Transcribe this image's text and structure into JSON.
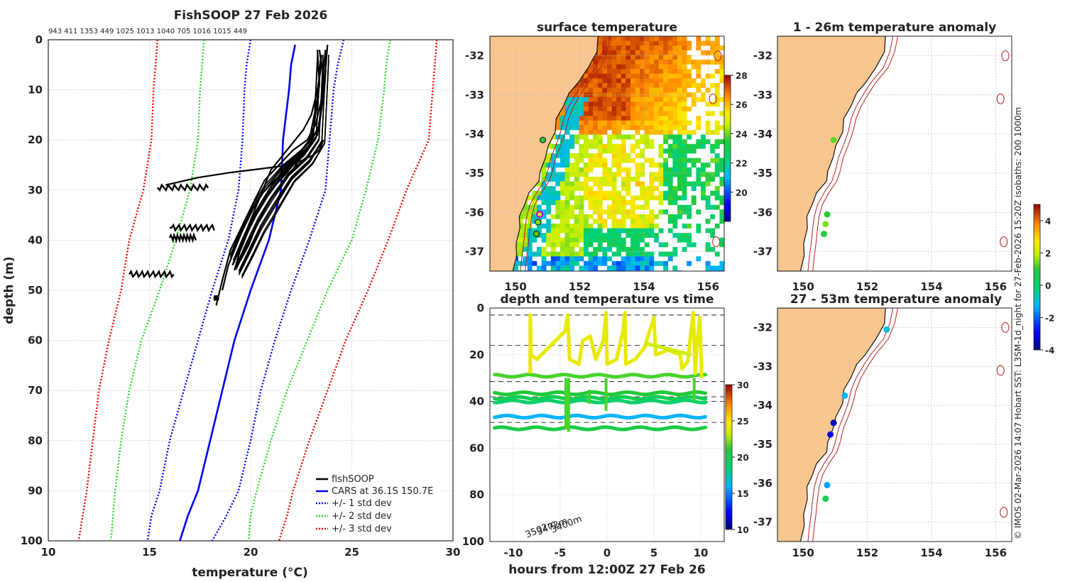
{
  "figure": {
    "credit": "© IMOS 02-Mar-2026 14:07 Hobart SST: L3SM-1d_night for 27-Feb-2026 15:20Z isobaths: 200  1000m"
  },
  "profile_panel": {
    "title": "FishSOOP 27 Feb 2026",
    "counts": "943 411 1353 449 1025 1013 1040 705 1016 1015 449",
    "xlabel": "temperature (°C)",
    "ylabel": "depth (m)",
    "legend": [
      "fishSOOP",
      "CARS at 36.1S 150.7E",
      "+/- 1 std dev",
      "+/- 2 std dev",
      "+/- 3 std dev"
    ]
  },
  "sst_map": {
    "title": "surface temperature"
  },
  "time_panel": {
    "title": "depth and temperature vs time",
    "xlabel": "hours from 12:00Z 27 Feb 26",
    "bathy_labels": [
      "3502m",
      "3472m",
      "3400m"
    ]
  },
  "anom_map_1": {
    "title": "1 - 26m temperature anomaly"
  },
  "anom_map_2": {
    "title": "27 - 53m temperature anomaly"
  },
  "chart_data": [
    {
      "type": "line",
      "name": "profiles",
      "title": "FishSOOP 27 Feb 2026",
      "xlabel": "temperature (°C)",
      "ylabel": "depth (m)",
      "xlim": [
        10,
        30
      ],
      "ylim": [
        100,
        0
      ],
      "xticks": [
        10,
        15,
        20,
        25,
        30
      ],
      "yticks": [
        0,
        10,
        20,
        30,
        40,
        50,
        60,
        70,
        80,
        90,
        100
      ],
      "grid": true,
      "legend_position": "bottom-right",
      "series": [
        {
          "name": "CARS at 36.1S 150.7E",
          "color": "#0000ee",
          "style": "solid",
          "temp": [
            22.2,
            22.0,
            21.9,
            21.6,
            21.5,
            20.9,
            20.0,
            19.2,
            18.6,
            18.0,
            17.4,
            16.9,
            16.5
          ],
          "depth": [
            1,
            5,
            10,
            20,
            30,
            40,
            50,
            60,
            70,
            80,
            90,
            95,
            100
          ]
        },
        {
          "name": "+/- 1 std dev",
          "color": "#0000ee",
          "style": "dotted",
          "temp": [
            20.0,
            19.8,
            19.7,
            19.6,
            19.4,
            18.9,
            18.1,
            17.4,
            16.7,
            16.0,
            15.5,
            15.1,
            14.9
          ],
          "depth": [
            0,
            5,
            10,
            20,
            30,
            40,
            50,
            60,
            70,
            80,
            90,
            95,
            100
          ]
        },
        {
          "name": "+/- 1 std dev (upper)",
          "color": "#0000ee",
          "style": "dotted",
          "temp": [
            24.6,
            24.3,
            24.1,
            23.9,
            23.7,
            22.9,
            22.0,
            21.2,
            20.5,
            20.0,
            19.4,
            18.8,
            18.1
          ],
          "depth": [
            0,
            5,
            10,
            20,
            30,
            40,
            50,
            60,
            70,
            80,
            90,
            95,
            100
          ]
        },
        {
          "name": "+/- 2 std dev",
          "color": "#22dd22",
          "style": "dotted",
          "temp": [
            17.7,
            17.6,
            17.5,
            17.4,
            17.0,
            16.3,
            15.5,
            14.6,
            14.0,
            13.6,
            13.3,
            13.2,
            13.1
          ],
          "depth": [
            0,
            5,
            10,
            20,
            30,
            40,
            50,
            60,
            70,
            80,
            90,
            95,
            100
          ]
        },
        {
          "name": "+/- 2 std dev (upper)",
          "color": "#22dd22",
          "style": "dotted",
          "temp": [
            26.9,
            26.7,
            26.6,
            26.3,
            25.7,
            25.0,
            23.8,
            22.8,
            21.8,
            21.0,
            20.3,
            20.0,
            19.9
          ],
          "depth": [
            0,
            5,
            10,
            20,
            30,
            40,
            50,
            60,
            70,
            80,
            90,
            95,
            100
          ]
        },
        {
          "name": "+/- 3 std dev",
          "color": "#ee0000",
          "style": "dotted",
          "temp": [
            15.4,
            15.3,
            15.2,
            15.1,
            14.7,
            14.0,
            13.6,
            13.0,
            12.5,
            12.2,
            11.9,
            11.7,
            11.5
          ],
          "depth": [
            0,
            5,
            10,
            20,
            30,
            40,
            50,
            60,
            70,
            80,
            90,
            95,
            100
          ]
        },
        {
          "name": "+/- 3 std dev (upper)",
          "color": "#ee0000",
          "style": "dotted",
          "temp": [
            29.2,
            29.1,
            29.0,
            28.8,
            27.7,
            26.8,
            25.8,
            24.7,
            23.8,
            22.9,
            22.1,
            21.8,
            21.4
          ],
          "depth": [
            0,
            5,
            10,
            20,
            30,
            40,
            50,
            60,
            70,
            80,
            90,
            95,
            100
          ]
        }
      ],
      "fishsoop_profiles": [
        {
          "temp": [
            23.4,
            23.5,
            23.3,
            23.0,
            22.6,
            22.2,
            21.6,
            21.0,
            20.6,
            20.2,
            19.8,
            19.4,
            19.1
          ],
          "depth": [
            2,
            5,
            10,
            15,
            18,
            20,
            23,
            26,
            30,
            34,
            38,
            42,
            45
          ]
        },
        {
          "temp": [
            23.7,
            23.6,
            23.5,
            23.2,
            22.8,
            22.1,
            21.4,
            20.7,
            20.2,
            19.6,
            19.0,
            18.6,
            18.3
          ],
          "depth": [
            2,
            6,
            12,
            17,
            20,
            22,
            25,
            28,
            32,
            37,
            42,
            48,
            53
          ]
        },
        {
          "temp": [
            23.5,
            23.4,
            23.3,
            23.1,
            22.9,
            22.4,
            21.9,
            21.3,
            20.8,
            20.3,
            19.9,
            19.5
          ],
          "depth": [
            3,
            7,
            12,
            18,
            21,
            24,
            27,
            30,
            33,
            37,
            41,
            44
          ]
        },
        {
          "temp": [
            23.6,
            23.6,
            23.5,
            23.3,
            22.7,
            22.0,
            21.2,
            20.5,
            19.9,
            19.4,
            18.9,
            18.6
          ],
          "depth": [
            4,
            8,
            13,
            19,
            22,
            25,
            28,
            31,
            35,
            40,
            45,
            50
          ]
        },
        {
          "temp": [
            23.8,
            23.7,
            23.6,
            23.4,
            22.9,
            22.3,
            21.7,
            21.0,
            20.4,
            19.9,
            19.5
          ],
          "depth": [
            1,
            6,
            11,
            17,
            21,
            24,
            27,
            30,
            34,
            38,
            42
          ]
        },
        {
          "temp": [
            23.3,
            23.4,
            23.2,
            22.9,
            22.4,
            21.6,
            20.9,
            20.3,
            19.7,
            19.2
          ],
          "depth": [
            2,
            9,
            14,
            20,
            23,
            26,
            30,
            34,
            39,
            46
          ]
        },
        {
          "temp": [
            23.6,
            23.4,
            23.1,
            22.6,
            21.9,
            21.0,
            20.0,
            19.0,
            17.4,
            15.8
          ],
          "depth": [
            20,
            22,
            23,
            24,
            25,
            25.5,
            26,
            26.5,
            27.5,
            29
          ]
        }
      ],
      "fishsoop_static": [
        {
          "temp_range": [
            15.4,
            17.9
          ],
          "depth": 29.5
        },
        {
          "temp_range": [
            16.0,
            18.2
          ],
          "depth": 37.5
        },
        {
          "temp_range": [
            16.0,
            17.3
          ],
          "depth": 39.5
        },
        {
          "temp_range": [
            14.0,
            16.2
          ],
          "depth": 46.8
        },
        {
          "temp_range": [
            18.2,
            18.4
          ],
          "depth": 51.5
        }
      ]
    },
    {
      "type": "scatter",
      "name": "depth_vs_time",
      "title": "depth and temperature vs time",
      "xlabel": "hours from 12:00Z 27 Feb 26",
      "ylabel": "",
      "xlim": [
        -12.5,
        12.5
      ],
      "ylim": [
        100,
        0
      ],
      "xticks": [
        -10,
        -5,
        0,
        5,
        10
      ],
      "yticks": [
        0,
        20,
        40,
        60,
        80,
        100
      ],
      "colorbar": {
        "min": 10,
        "max": 30,
        "ticks": [
          10,
          15,
          20,
          25,
          30
        ]
      },
      "bathy_depths_dashed": [
        3,
        16,
        31.5,
        38,
        40,
        49
      ],
      "tracks": [
        {
          "t_start": -12,
          "t_end": 10.5,
          "depth": 29,
          "temp": 21.5
        },
        {
          "t_start": -12,
          "t_end": 10.5,
          "depth": 36.5,
          "temp": 21.0
        },
        {
          "t_start": -12,
          "t_end": 10.5,
          "depth": 38.5,
          "temp": 20.0
        },
        {
          "t_start": -12,
          "t_end": 10.5,
          "depth": 40,
          "temp": 19.0
        },
        {
          "t_start": -12,
          "t_end": 10.5,
          "depth": 46.5,
          "temp": 16.0
        },
        {
          "t_start": -12,
          "t_end": 10.5,
          "depth": 51.5,
          "temp": 20.5
        }
      ],
      "surface_track": {
        "temp": 24.5,
        "depth_range": [
          2,
          30
        ]
      }
    },
    {
      "type": "scatter",
      "name": "anomaly_1_26m",
      "title": "1 - 26m temperature anomaly",
      "xlim": [
        149.2,
        156.5
      ],
      "ylim": [
        -37.5,
        -31.5
      ],
      "xticks": [
        150,
        152,
        154,
        156
      ],
      "yticks": [
        -32,
        -33,
        -34,
        -35,
        -36,
        -37
      ],
      "colorbar": {
        "min": -4,
        "max": 5,
        "ticks": [
          -4,
          -2,
          0,
          2,
          4
        ]
      },
      "points": [
        {
          "lon": 150.95,
          "lat": -34.15,
          "anom": 1.3
        },
        {
          "lon": 150.75,
          "lat": -36.05,
          "anom": 1.0
        },
        {
          "lon": 150.7,
          "lat": -36.3,
          "anom": 1.5
        },
        {
          "lon": 150.65,
          "lat": -36.55,
          "anom": 0.8
        }
      ]
    },
    {
      "type": "scatter",
      "name": "anomaly_27_53m",
      "title": "27 - 53m temperature anomaly",
      "xlim": [
        149.2,
        156.5
      ],
      "ylim": [
        -37.5,
        -31.5
      ],
      "xticks": [
        150,
        152,
        154,
        156
      ],
      "yticks": [
        -32,
        -33,
        -34,
        -35,
        -36,
        -37
      ],
      "points": [
        {
          "lon": 152.6,
          "lat": -32.05,
          "anom": -1.0
        },
        {
          "lon": 151.3,
          "lat": -33.75,
          "anom": -1.3
        },
        {
          "lon": 150.95,
          "lat": -34.45,
          "anom": -3.5
        },
        {
          "lon": 150.85,
          "lat": -34.75,
          "anom": -3.0
        },
        {
          "lon": 150.75,
          "lat": -36.05,
          "anom": -1.5
        },
        {
          "lon": 150.7,
          "lat": -36.4,
          "anom": 0.5
        }
      ]
    },
    {
      "type": "heatmap",
      "name": "surface_temperature",
      "title": "surface temperature",
      "xlim": [
        149.2,
        156.5
      ],
      "ylim": [
        -37.5,
        -31.5
      ],
      "xticks": [
        150,
        152,
        154,
        156
      ],
      "yticks": [
        -32,
        -33,
        -34,
        -35,
        -36,
        -37
      ],
      "colorbar": {
        "min": 18,
        "max": 28,
        "ticks": [
          20,
          22,
          24,
          26,
          28
        ]
      }
    }
  ]
}
